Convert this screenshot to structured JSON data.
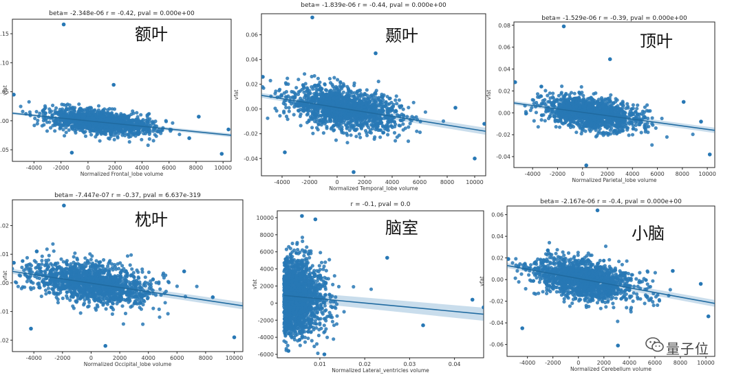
{
  "chart_data": [
    {
      "type": "scatter",
      "title": "beta= -2.348e-06 r = -0.42, pval = 0.000e+00",
      "cjk_label": "额叶",
      "xlabel": "Normalized Frontal_lobe volume",
      "ylabel": "vfat",
      "xlim": [
        -5600,
        10600
      ],
      "ylim": [
        -0.07,
        0.175
      ],
      "xticks": [
        -4000,
        -2000,
        0,
        2000,
        4000,
        6000,
        8000,
        10000
      ],
      "yticks": [
        -0.05,
        0.0,
        0.05,
        0.1,
        0.15
      ],
      "ytick_labels": [
        "-0.05",
        "0.00",
        "0.05",
        "0.10",
        "0.15"
      ],
      "cloud": {
        "x_mean": 800,
        "x_sd": 1900,
        "y_sd": 0.009,
        "n": 1400
      },
      "regression": {
        "x": [
          -5600,
          10600
        ],
        "y": [
          0.013,
          -0.025
        ]
      },
      "outliers": [
        [
          -1800,
          0.166
        ],
        [
          1900,
          0.062
        ],
        [
          -5500,
          0.045
        ],
        [
          7500,
          -0.03
        ],
        [
          9900,
          -0.057
        ],
        [
          10400,
          -0.015
        ],
        [
          -1200,
          -0.055
        ],
        [
          8200,
          0.007
        ]
      ],
      "color": "#2878b5"
    },
    {
      "type": "scatter",
      "title": "beta= -1.839e-06 r = -0.44, pval = 0.000e+00",
      "cjk_label": "颞叶",
      "xlabel": "Normalized Temporal_lobe volume",
      "ylabel": "vfat",
      "xlim": [
        -5500,
        10800
      ],
      "ylim": [
        -0.054,
        0.077
      ],
      "xticks": [
        -4000,
        -2000,
        0,
        2000,
        4000,
        6000,
        8000,
        10000
      ],
      "yticks": [
        -0.04,
        -0.02,
        0.0,
        0.02,
        0.04,
        0.06
      ],
      "ytick_labels": [
        "-0.04",
        "-0.02",
        "0.00",
        "0.02",
        "0.04",
        "0.06"
      ],
      "cloud": {
        "x_mean": 600,
        "x_sd": 2000,
        "y_sd": 0.008,
        "n": 1500
      },
      "regression": {
        "x": [
          -5500,
          10800
        ],
        "y": [
          0.011,
          -0.018
        ]
      },
      "outliers": [
        [
          -1800,
          0.074
        ],
        [
          2800,
          0.045
        ],
        [
          -5400,
          0.026
        ],
        [
          1200,
          -0.051
        ],
        [
          -3800,
          -0.035
        ],
        [
          10000,
          -0.04
        ],
        [
          10700,
          -0.012
        ],
        [
          8600,
          0.001
        ]
      ],
      "color": "#2878b5"
    },
    {
      "type": "scatter",
      "title": "beta= -1.529e-06 r = -0.39, pval = 0.000e+00",
      "cjk_label": "顶叶",
      "xlabel": "Normalized Parietal_lobe volume",
      "ylabel": "vfat",
      "xlim": [
        -5500,
        10600
      ],
      "ylim": [
        -0.05,
        0.083
      ],
      "xticks": [
        -4000,
        -2000,
        0,
        2000,
        4000,
        6000,
        8000,
        10000
      ],
      "yticks": [
        -0.04,
        -0.02,
        0.0,
        0.02,
        0.04,
        0.06,
        0.08
      ],
      "ytick_labels": [
        "-0.04",
        "-0.02",
        "0.00",
        "0.02",
        "0.04",
        "0.06",
        "0.08"
      ],
      "cloud": {
        "x_mean": 700,
        "x_sd": 1900,
        "y_sd": 0.007,
        "n": 1400
      },
      "regression": {
        "x": [
          -5500,
          10600
        ],
        "y": [
          0.009,
          -0.016
        ]
      },
      "outliers": [
        [
          -1500,
          0.079
        ],
        [
          2200,
          0.049
        ],
        [
          -5400,
          0.028
        ],
        [
          -3300,
          0.024
        ],
        [
          10200,
          -0.038
        ],
        [
          9500,
          -0.008
        ],
        [
          300,
          -0.048
        ],
        [
          8100,
          0.01
        ]
      ],
      "color": "#2878b5"
    },
    {
      "type": "scatter",
      "title": "beta= -7.447e-07 r = -0.37, pval = 6.637e-319",
      "cjk_label": "枕叶",
      "xlabel": "Normalized Occipital_lobe volume",
      "ylabel": "vfat",
      "xlim": [
        -5500,
        10600
      ],
      "ylim": [
        -0.024,
        0.029
      ],
      "xticks": [
        -4000,
        -2000,
        0,
        2000,
        4000,
        6000,
        8000,
        10000
      ],
      "yticks": [
        -0.02,
        -0.01,
        0.0,
        0.01,
        0.02
      ],
      "ytick_labels": [
        "-0.02",
        "-0.01",
        "0.00",
        "0.01",
        "0.02"
      ],
      "cloud": {
        "x_mean": 0,
        "x_sd": 2100,
        "y_sd": 0.0035,
        "n": 1500
      },
      "regression": {
        "x": [
          -5500,
          10600
        ],
        "y": [
          0.004,
          -0.008
        ]
      },
      "outliers": [
        [
          -1900,
          0.027
        ],
        [
          -4200,
          -0.016
        ],
        [
          1000,
          -0.022
        ],
        [
          10000,
          -0.019
        ],
        [
          -5400,
          0.007
        ],
        [
          8500,
          -0.005
        ],
        [
          -3800,
          0.011
        ],
        [
          6500,
          0.004
        ]
      ],
      "color": "#2878b5"
    },
    {
      "type": "scatter",
      "title": "r = -0.1, pval = 0.0",
      "cjk_label": "脑室",
      "xlabel": "Normalized Lateral_ventricles volume",
      "ylabel": "vfat",
      "xlim": [
        0.0005,
        0.0465
      ],
      "ylim": [
        -6400,
        10800
      ],
      "xticks": [
        0.01,
        0.02,
        0.03,
        0.04
      ],
      "ytick_labels": [
        "-6000",
        "-4000",
        "-2000",
        "0",
        "2000",
        "4000",
        "6000",
        "8000",
        "10000"
      ],
      "yticks": [
        -6000,
        -4000,
        -2000,
        0,
        2000,
        4000,
        6000,
        8000,
        10000
      ],
      "cloud": {
        "x_mean": 0.0085,
        "x_sd": 0.0045,
        "y_sd": 2200,
        "n": 1700,
        "x_floor": 0.002
      },
      "regression": {
        "x": [
          0.002,
          0.0465
        ],
        "y": [
          900,
          -1300
        ]
      },
      "outliers": [
        [
          0.006,
          10200
        ],
        [
          0.009,
          9800
        ],
        [
          0.044,
          400
        ],
        [
          0.0465,
          -500
        ],
        [
          0.033,
          -2600
        ],
        [
          0.025,
          5300
        ],
        [
          0.003,
          -5600
        ],
        [
          0.011,
          -6000
        ]
      ],
      "color": "#2878b5"
    },
    {
      "type": "scatter",
      "title": "beta= -2.167e-06 r = -0.4, pval = 0.000e+00",
      "cjk_label": "小脑",
      "xlabel": "Normalized Cerebellum volume",
      "ylabel": "vfat",
      "xlim": [
        -5600,
        10700
      ],
      "ylim": [
        -0.071,
        0.068
      ],
      "xticks": [
        -4000,
        -2000,
        0,
        2000,
        4000,
        6000,
        8000,
        10000
      ],
      "yticks": [
        -0.06,
        -0.04,
        -0.02,
        0.0,
        0.02,
        0.04,
        0.06
      ],
      "ytick_labels": [
        "-0.06",
        "-0.04",
        "-0.02",
        "0.00",
        "0.02",
        "0.04",
        "0.06"
      ],
      "cloud": {
        "x_mean": 400,
        "x_sd": 2000,
        "y_sd": 0.009,
        "n": 1500
      },
      "regression": {
        "x": [
          -5600,
          10700
        ],
        "y": [
          0.013,
          -0.022
        ]
      },
      "outliers": [
        [
          1500,
          0.064
        ],
        [
          -4400,
          -0.045
        ],
        [
          3100,
          -0.061
        ],
        [
          -5500,
          0.019
        ],
        [
          10200,
          -0.034
        ],
        [
          9600,
          -0.004
        ],
        [
          -2400,
          0.027
        ],
        [
          7400,
          0.008
        ]
      ],
      "color": "#2878b5"
    }
  ],
  "watermark": {
    "text": "量子位",
    "icon": "wechat-icon"
  }
}
